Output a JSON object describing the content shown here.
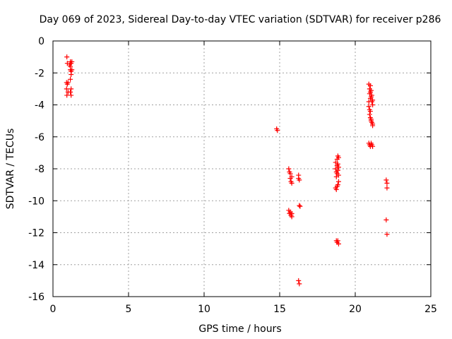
{
  "chart_data": {
    "type": "scatter",
    "title": "Day 069 of 2023, Sidereal Day-to-day VTEC variation (SDTVAR) for receiver p286",
    "xlabel": "GPS time / hours",
    "ylabel": "SDTVAR / TECUs",
    "xlim": [
      0,
      25
    ],
    "ylim": [
      -16,
      0
    ],
    "xticks": [
      0,
      5,
      10,
      15,
      20,
      25
    ],
    "yticks": [
      0,
      -2,
      -4,
      -6,
      -8,
      -10,
      -12,
      -14,
      -16
    ],
    "grid": true,
    "marker": "plus",
    "series": [
      {
        "color": "#ff0000",
        "points": [
          [
            0.92,
            -1.0
          ],
          [
            0.95,
            -1.4
          ],
          [
            0.9,
            -2.6
          ],
          [
            0.95,
            -2.7
          ],
          [
            0.9,
            -3.0
          ],
          [
            0.92,
            -3.4
          ],
          [
            1.0,
            -2.6
          ],
          [
            1.0,
            -3.2
          ],
          [
            1.1,
            -1.5
          ],
          [
            1.15,
            -1.3
          ],
          [
            1.15,
            -1.6
          ],
          [
            1.2,
            -1.4
          ],
          [
            1.15,
            -1.8
          ],
          [
            1.2,
            -1.9
          ],
          [
            1.2,
            -2.1
          ],
          [
            1.15,
            -2.4
          ],
          [
            1.2,
            -3.0
          ],
          [
            1.15,
            -3.2
          ],
          [
            1.2,
            -3.4
          ],
          [
            1.25,
            -1.3
          ],
          [
            1.25,
            -1.8
          ],
          [
            14.8,
            -5.5
          ],
          [
            14.85,
            -5.6
          ],
          [
            15.6,
            -8.0
          ],
          [
            15.65,
            -8.2
          ],
          [
            15.7,
            -8.3
          ],
          [
            15.7,
            -8.6
          ],
          [
            15.75,
            -8.8
          ],
          [
            15.8,
            -8.5
          ],
          [
            15.8,
            -8.9
          ],
          [
            15.6,
            -10.6
          ],
          [
            15.65,
            -10.8
          ],
          [
            15.7,
            -10.7
          ],
          [
            15.75,
            -10.9
          ],
          [
            15.8,
            -10.8
          ],
          [
            15.8,
            -11.0
          ],
          [
            16.25,
            -8.4
          ],
          [
            16.25,
            -8.6
          ],
          [
            16.3,
            -8.7
          ],
          [
            16.3,
            -10.3
          ],
          [
            16.35,
            -10.35
          ],
          [
            16.25,
            -15.0
          ],
          [
            16.3,
            -15.2
          ],
          [
            18.7,
            -7.6
          ],
          [
            18.7,
            -8.0
          ],
          [
            18.75,
            -8.2
          ],
          [
            18.75,
            -8.5
          ],
          [
            18.8,
            -7.4
          ],
          [
            18.8,
            -7.8
          ],
          [
            18.8,
            -8.3
          ],
          [
            18.85,
            -7.2
          ],
          [
            18.85,
            -7.7
          ],
          [
            18.85,
            -8.1
          ],
          [
            18.9,
            -7.3
          ],
          [
            18.9,
            -7.9
          ],
          [
            18.9,
            -8.4
          ],
          [
            18.7,
            -9.2
          ],
          [
            18.75,
            -9.3
          ],
          [
            18.8,
            -9.1
          ],
          [
            18.85,
            -9.0
          ],
          [
            18.9,
            -8.8
          ],
          [
            18.75,
            -12.5
          ],
          [
            18.8,
            -12.6
          ],
          [
            18.85,
            -12.5
          ],
          [
            18.9,
            -12.7
          ],
          [
            20.9,
            -2.7
          ],
          [
            20.95,
            -3.0
          ],
          [
            20.95,
            -3.3
          ],
          [
            21.0,
            -2.8
          ],
          [
            21.0,
            -3.2
          ],
          [
            21.0,
            -3.6
          ],
          [
            21.05,
            -3.1
          ],
          [
            21.05,
            -3.5
          ],
          [
            21.1,
            -3.4
          ],
          [
            21.1,
            -3.8
          ],
          [
            21.15,
            -3.7
          ],
          [
            21.15,
            -4.0
          ],
          [
            20.9,
            -3.8
          ],
          [
            20.9,
            -4.1
          ],
          [
            20.95,
            -4.3
          ],
          [
            20.95,
            -4.6
          ],
          [
            21.0,
            -4.4
          ],
          [
            21.0,
            -4.8
          ],
          [
            21.05,
            -4.9
          ],
          [
            21.05,
            -5.0
          ],
          [
            21.1,
            -5.1
          ],
          [
            21.15,
            -5.2
          ],
          [
            21.15,
            -5.3
          ],
          [
            20.9,
            -6.4
          ],
          [
            20.95,
            -6.5
          ],
          [
            21.0,
            -6.6
          ],
          [
            21.05,
            -6.4
          ],
          [
            21.1,
            -6.5
          ],
          [
            21.15,
            -6.6
          ],
          [
            22.05,
            -8.7
          ],
          [
            22.1,
            -8.9
          ],
          [
            22.1,
            -9.2
          ],
          [
            22.05,
            -11.2
          ],
          [
            22.1,
            -12.1
          ]
        ]
      }
    ]
  }
}
